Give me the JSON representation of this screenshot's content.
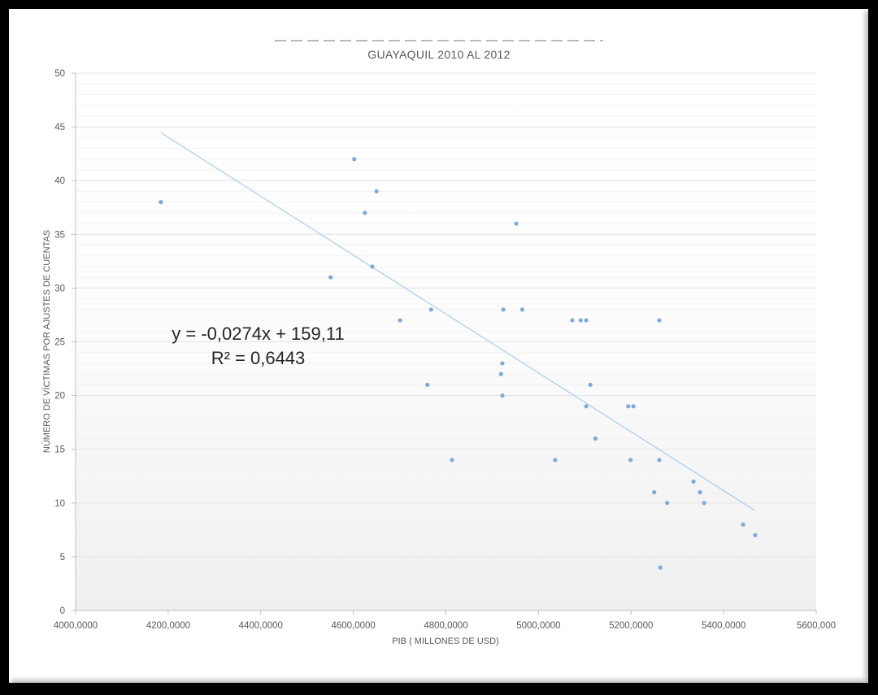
{
  "chart": {
    "title_line1_clipped": "",
    "title_line2": "GUAYAQUIL 2010 AL  2012",
    "xlabel": "PIB ( MILLONES DE USD)",
    "ylabel": "NÚMERO DE VÍCTIMAS  POR AJUSTES DE CUENTAS",
    "equation": "y = -0,0274x + 159,11",
    "r2_label": "R² = 0,6443",
    "x_ticks": [
      "4000,0000",
      "4200,0000",
      "4400,0000",
      "4600,0000",
      "4800,0000",
      "5000,0000",
      "5200,0000",
      "5400,0000",
      "5600,000"
    ],
    "y_ticks": [
      "0",
      "5",
      "10",
      "15",
      "20",
      "25",
      "30",
      "35",
      "40",
      "45",
      "50"
    ],
    "colors": {
      "marker": "#7fa9dc",
      "trendline": "#a9cbee",
      "grid": "#e6e6e6",
      "frame": "#000000"
    }
  },
  "chart_data": {
    "type": "scatter",
    "title": "GUAYAQUIL 2010 AL 2012",
    "xlabel": "PIB ( MILLONES DE USD)",
    "ylabel": "NÚMERO DE VÍCTIMAS POR AJUSTES DE CUENTAS",
    "xlim": [
      4000,
      5600
    ],
    "ylim": [
      0,
      50
    ],
    "grid": true,
    "legend": "none",
    "trendline": {
      "type": "linear",
      "slope": -0.0274,
      "intercept": 159.11,
      "r2": 0.6443,
      "x_range": [
        4184,
        5468
      ]
    },
    "points": [
      {
        "x": 4184,
        "y": 38
      },
      {
        "x": 4551,
        "y": 31
      },
      {
        "x": 4602,
        "y": 42
      },
      {
        "x": 4625,
        "y": 37
      },
      {
        "x": 4641,
        "y": 32
      },
      {
        "x": 4650,
        "y": 39
      },
      {
        "x": 4701,
        "y": 27
      },
      {
        "x": 4760,
        "y": 21
      },
      {
        "x": 4768,
        "y": 28
      },
      {
        "x": 4813,
        "y": 14
      },
      {
        "x": 4919,
        "y": 22
      },
      {
        "x": 4922,
        "y": 23
      },
      {
        "x": 4922,
        "y": 20
      },
      {
        "x": 4924,
        "y": 28
      },
      {
        "x": 4952,
        "y": 36
      },
      {
        "x": 4965,
        "y": 28
      },
      {
        "x": 5036,
        "y": 14
      },
      {
        "x": 5073,
        "y": 27
      },
      {
        "x": 5091,
        "y": 27
      },
      {
        "x": 5103,
        "y": 27
      },
      {
        "x": 5103,
        "y": 19
      },
      {
        "x": 5112,
        "y": 21
      },
      {
        "x": 5123,
        "y": 16
      },
      {
        "x": 5194,
        "y": 19
      },
      {
        "x": 5199,
        "y": 14
      },
      {
        "x": 5205,
        "y": 19
      },
      {
        "x": 5250,
        "y": 11
      },
      {
        "x": 5261,
        "y": 27
      },
      {
        "x": 5261,
        "y": 14
      },
      {
        "x": 5263,
        "y": 4
      },
      {
        "x": 5278,
        "y": 10
      },
      {
        "x": 5335,
        "y": 12
      },
      {
        "x": 5349,
        "y": 11
      },
      {
        "x": 5358,
        "y": 10
      },
      {
        "x": 5442,
        "y": 8
      },
      {
        "x": 5468,
        "y": 7
      }
    ]
  }
}
